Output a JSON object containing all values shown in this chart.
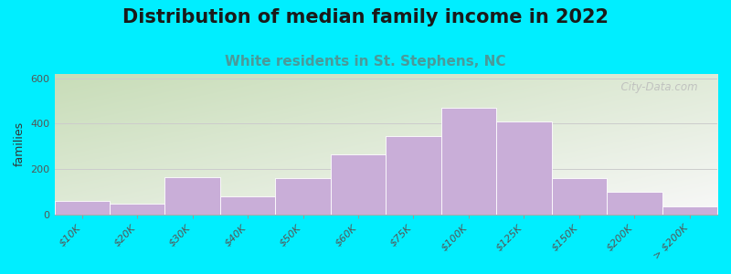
{
  "title": "Distribution of median family income in 2022",
  "subtitle": "White residents in St. Stephens, NC",
  "ylabel": "families",
  "categories": [
    "$10K",
    "$20K",
    "$30K",
    "$40K",
    "$50K",
    "$60K",
    "$75K",
    "$100K",
    "$125K",
    "$150K",
    "$200K",
    "> $200K"
  ],
  "values": [
    60,
    45,
    165,
    80,
    160,
    265,
    345,
    470,
    410,
    160,
    100,
    35
  ],
  "bar_color": "#c9aed8",
  "bar_edge_color": "#ffffff",
  "ylim": [
    0,
    620
  ],
  "yticks": [
    0,
    200,
    400,
    600
  ],
  "bg_color": "#00eeff",
  "plot_bg_topleft": "#c8ddb8",
  "plot_bg_bottomright": "#f8f8f8",
  "watermark": "  City-Data.com",
  "title_fontsize": 15,
  "subtitle_fontsize": 11,
  "subtitle_color": "#4a9a9a",
  "tick_label_fontsize": 8
}
